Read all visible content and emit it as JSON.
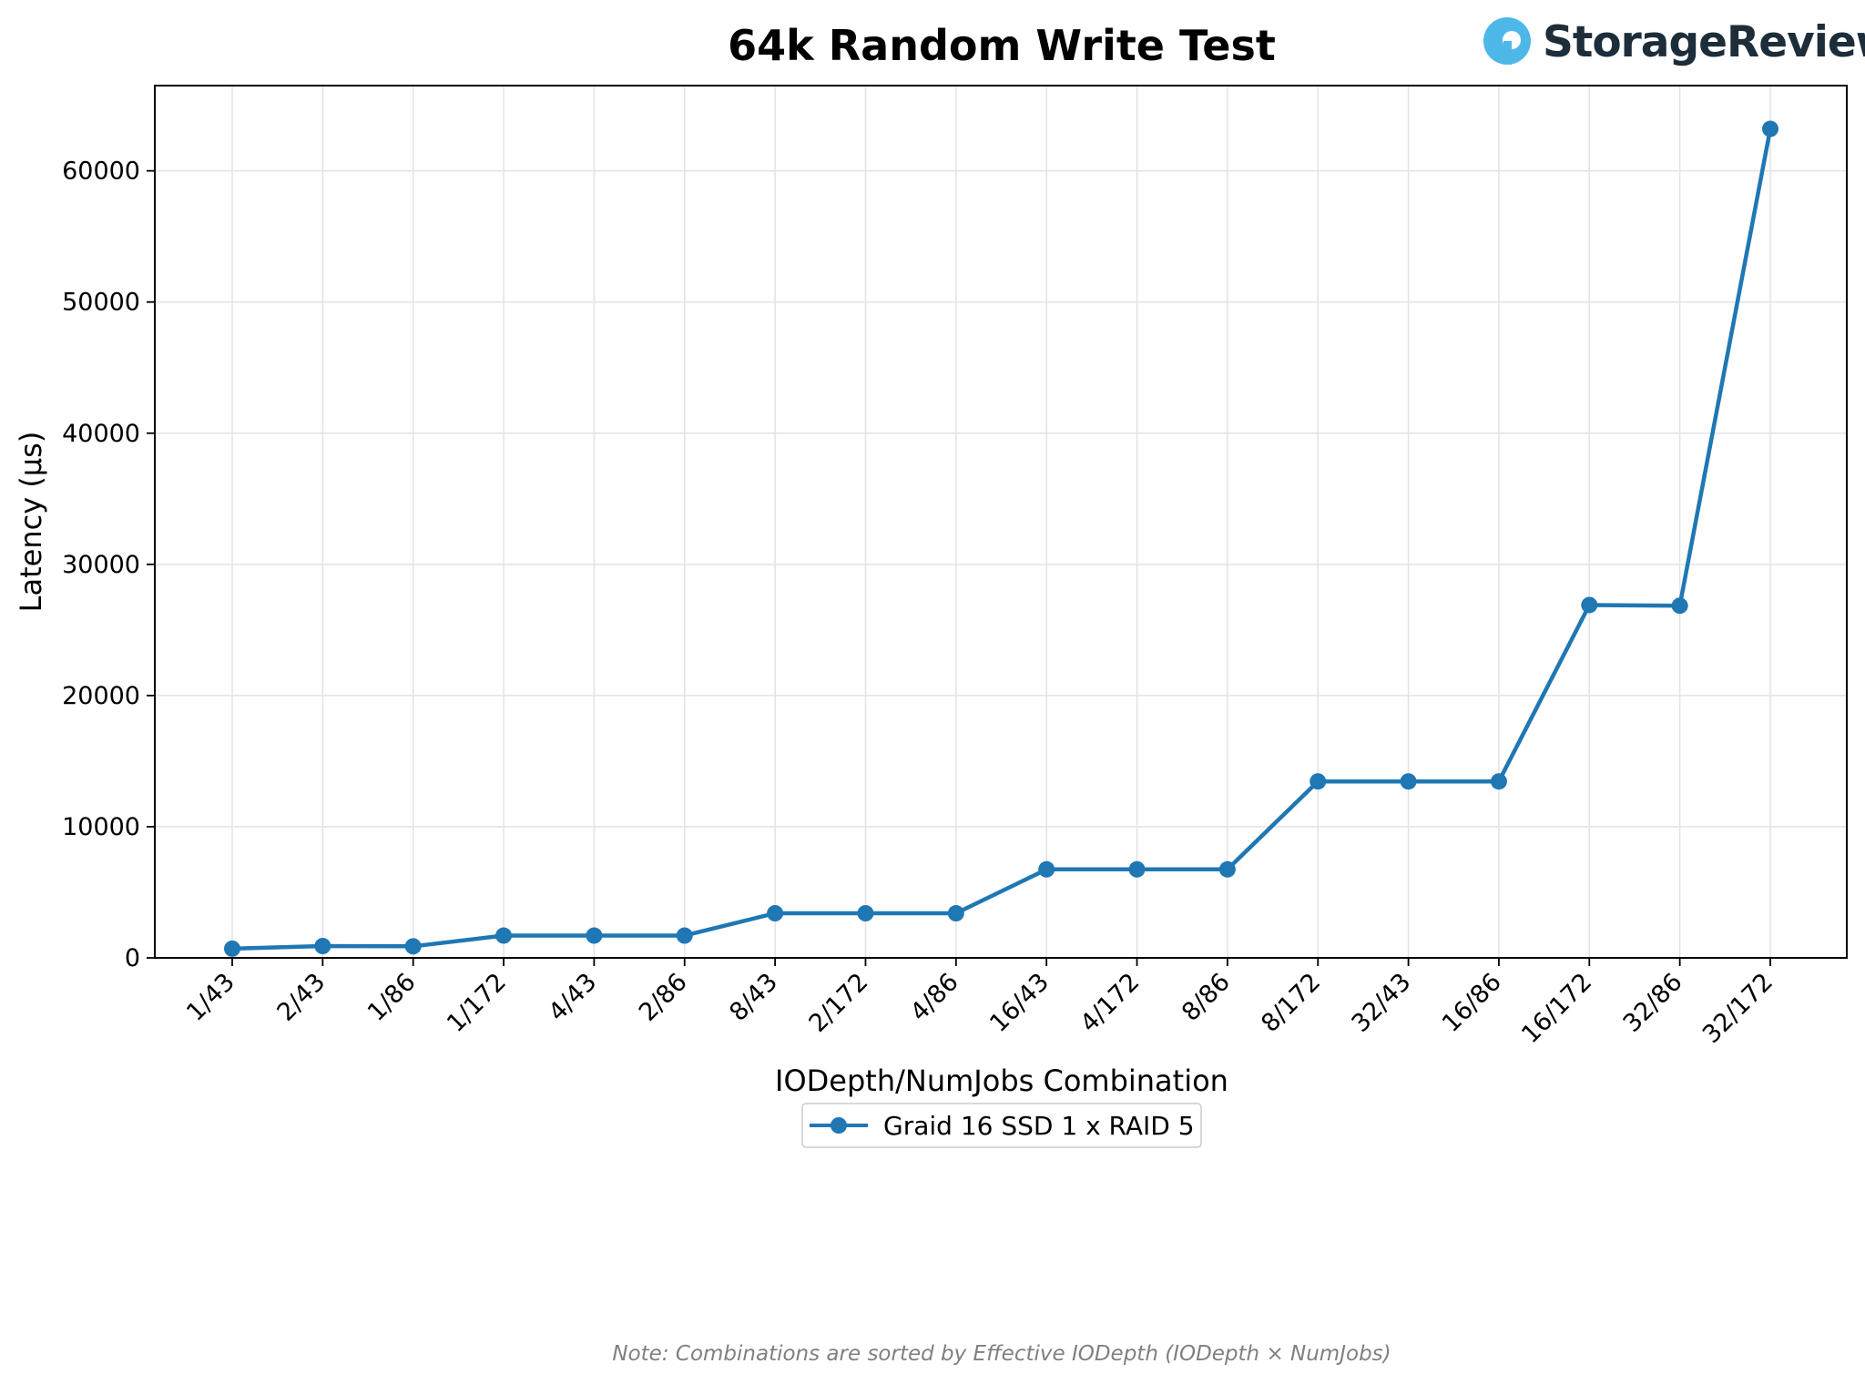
{
  "chart_data": {
    "type": "line",
    "title": "64k Random Write Test",
    "xlabel": "IODepth/NumJobs Combination",
    "ylabel": "Latency (µs)",
    "categories": [
      "1/43",
      "2/43",
      "1/86",
      "1/172",
      "4/43",
      "2/86",
      "8/43",
      "2/172",
      "4/86",
      "16/43",
      "4/172",
      "8/86",
      "8/172",
      "32/43",
      "16/86",
      "16/172",
      "32/86",
      "32/172"
    ],
    "series": [
      {
        "name": "Graid 16 SSD 1 x RAID 5",
        "color": "#1f77b4",
        "values": [
          700,
          900,
          880,
          1700,
          1700,
          1700,
          3400,
          3400,
          3400,
          6750,
          6750,
          6750,
          13450,
          13450,
          13450,
          26900,
          26850,
          63200
        ]
      }
    ],
    "ylim": [
      0,
      66500
    ],
    "yticks": [
      0,
      10000,
      20000,
      30000,
      40000,
      50000,
      60000
    ],
    "grid": true,
    "legend_position": "bottom-center",
    "note": "Note: Combinations are sorted by Effective IODepth (IODepth × NumJobs)"
  },
  "logo": {
    "text": "StorageReview",
    "icon": "storagereview-logo-icon",
    "icon_color": "#4db8e8",
    "text_color": "#1d2d3a"
  }
}
